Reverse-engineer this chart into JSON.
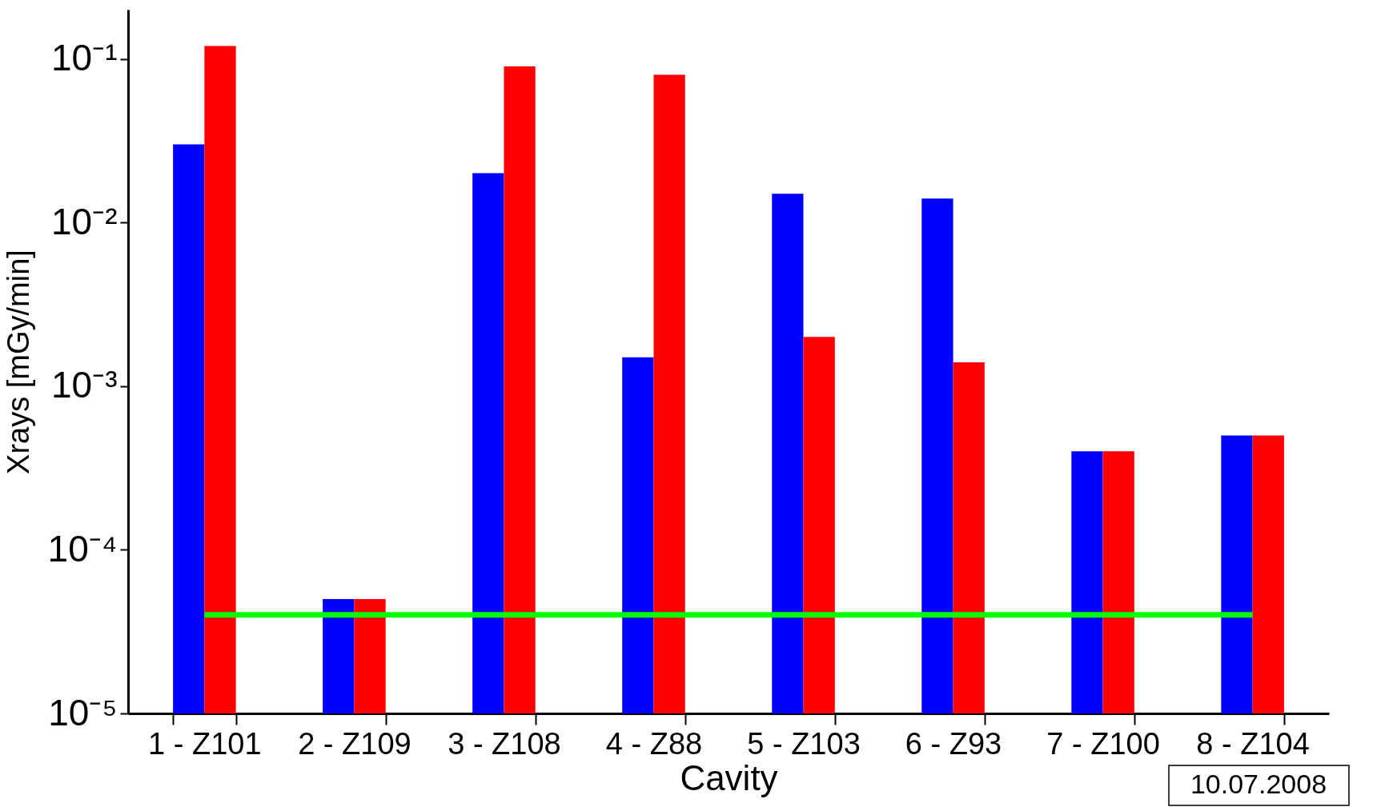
{
  "chart_data": {
    "type": "bar",
    "xlabel": "Cavity",
    "ylabel": "Xrays [mGy/min]",
    "log": "y",
    "categories": [
      "1 - Z101",
      "2 - Z109",
      "3 - Z108",
      "4 - Z88",
      "5 - Z103",
      "6 - Z93",
      "7 - Z100",
      "8 - Z104"
    ],
    "series": [
      {
        "color": "#0000ff",
        "values": [
          0.03,
          5e-05,
          0.02,
          0.0015,
          0.015,
          0.014,
          0.0004,
          0.0005
        ]
      },
      {
        "color": "#ff0000",
        "values": [
          0.12,
          5e-05,
          0.09,
          0.08,
          0.002,
          0.0014,
          0.0004,
          0.0005
        ]
      }
    ],
    "ylim": [
      1e-05,
      0.2
    ],
    "yticks": [
      {
        "value": 1e-05,
        "label": "10⁻⁵"
      },
      {
        "value": 0.0001,
        "label": "10⁻⁴"
      },
      {
        "value": 0.001,
        "label": "10⁻³"
      },
      {
        "value": 0.01,
        "label": "10⁻²"
      },
      {
        "value": 0.1,
        "label": "10⁻¹"
      }
    ],
    "ref_lines": [
      {
        "axis": "y",
        "value": 4e-05,
        "color": "#00ff00"
      }
    ],
    "annotations": [
      "10.07.2008"
    ],
    "grid": false
  }
}
